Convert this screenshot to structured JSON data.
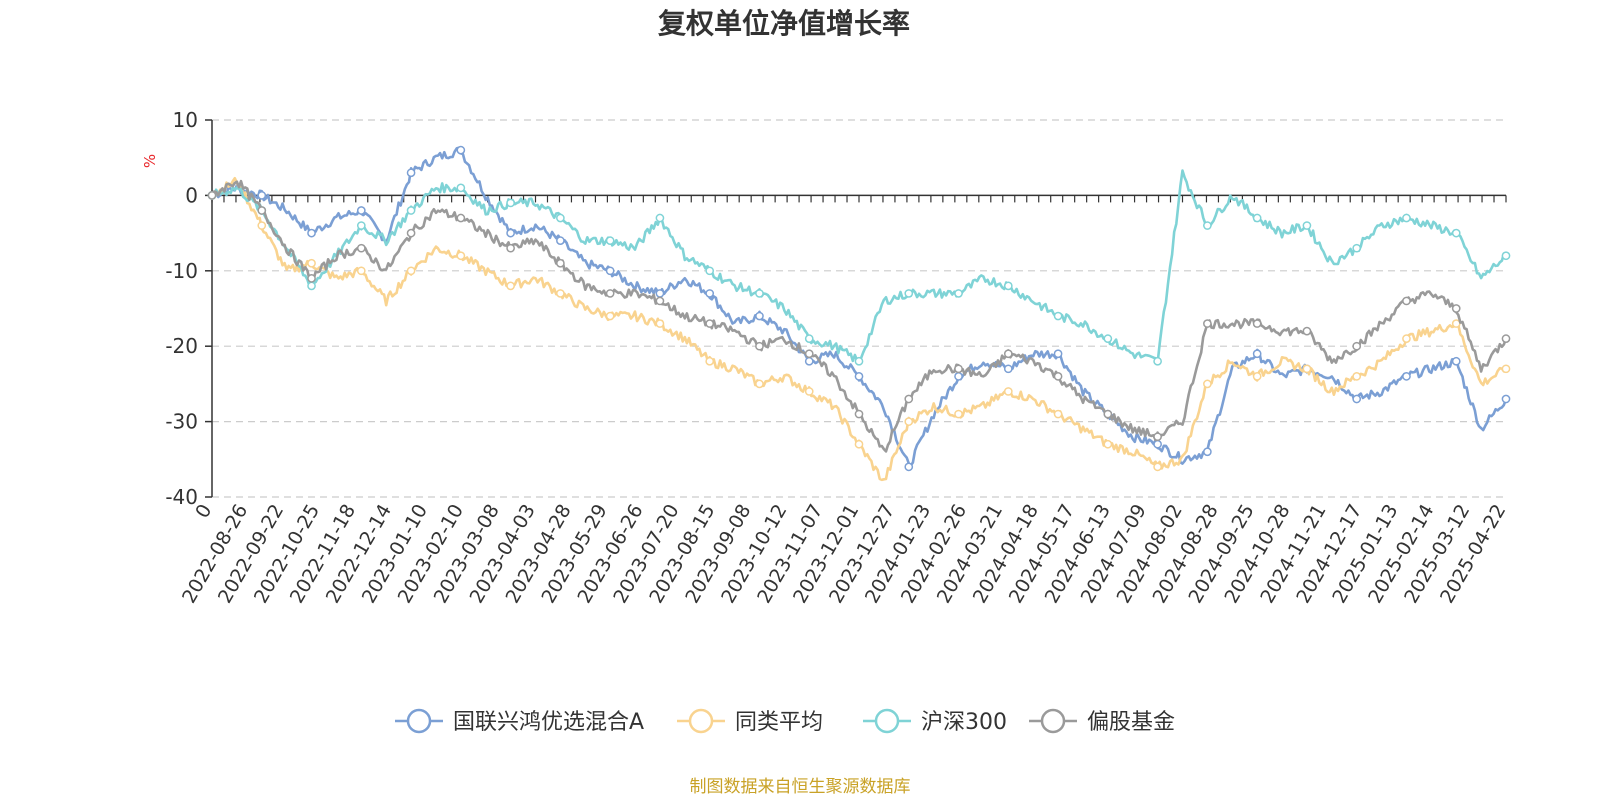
{
  "chart_data": {
    "type": "line",
    "title": "复权单位净值增长率",
    "y_unit": "%",
    "ylim": [
      -40,
      10
    ],
    "y_ticks": [
      10,
      0,
      -10,
      -20,
      -30,
      -40
    ],
    "x_tick_labels": [
      "0",
      "2022-08-26",
      "2022-09-22",
      "2022-10-25",
      "2022-11-18",
      "2022-12-14",
      "2023-01-10",
      "2023-02-10",
      "2023-03-08",
      "2023-04-03",
      "2023-04-28",
      "2023-05-29",
      "2023-06-26",
      "2023-07-20",
      "2023-08-15",
      "2023-09-08",
      "2023-10-12",
      "2023-11-07",
      "2023-12-01",
      "2023-12-27",
      "2024-01-23",
      "2024-02-26",
      "2024-03-21",
      "2024-04-18",
      "2024-05-17",
      "2024-06-13",
      "2024-07-09",
      "2024-08-02",
      "2024-08-28",
      "2024-09-25",
      "2024-10-28",
      "2024-11-21",
      "2024-12-17",
      "2025-01-13",
      "2025-02-14",
      "2025-03-12",
      "2025-04-22"
    ],
    "grid": "horizontal dashed",
    "legend_position": "bottom",
    "series": [
      {
        "name": "国联兴鸿优选混合A",
        "color": "#7b9fd4",
        "values": [
          0,
          1,
          0,
          -2,
          -5,
          -3,
          -2,
          -6,
          3,
          5,
          6,
          0,
          -5,
          -4,
          -6,
          -9,
          -10,
          -12,
          -13,
          -11,
          -13,
          -17,
          -16,
          -18,
          -22,
          -21,
          -24,
          -28,
          -36,
          -29,
          -24,
          -22,
          -23,
          -21,
          -21,
          -26,
          -29,
          -32,
          -33,
          -35,
          -34,
          -23,
          -21,
          -24,
          -23,
          -24,
          -27,
          -26,
          -24,
          -23,
          -22,
          -31,
          -27
        ]
      },
      {
        "name": "同类平均",
        "color": "#f9d38f",
        "values": [
          0,
          2,
          -4,
          -10,
          -9,
          -11,
          -10,
          -14,
          -10,
          -7,
          -8,
          -10,
          -12,
          -11,
          -13,
          -15,
          -16,
          -16,
          -17,
          -19,
          -22,
          -23,
          -25,
          -24,
          -26,
          -28,
          -33,
          -38,
          -30,
          -28,
          -29,
          -28,
          -26,
          -27,
          -29,
          -31,
          -33,
          -34,
          -36,
          -35,
          -25,
          -22,
          -24,
          -22,
          -23,
          -26,
          -24,
          -22,
          -19,
          -18,
          -17,
          -25,
          -23
        ]
      },
      {
        "name": "沪深300",
        "color": "#7fd3d6",
        "values": [
          0,
          1,
          -2,
          -7,
          -12,
          -8,
          -4,
          -6,
          -2,
          1,
          1,
          -2,
          -1,
          -1,
          -3,
          -6,
          -6,
          -7,
          -3,
          -8,
          -10,
          -12,
          -13,
          -15,
          -19,
          -20,
          -22,
          -14,
          -13,
          -13,
          -13,
          -11,
          -12,
          -14,
          -16,
          -17,
          -19,
          -21,
          -22,
          3,
          -4,
          0,
          -3,
          -5,
          -4,
          -9,
          -7,
          -4,
          -3,
          -4,
          -5,
          -11,
          -8
        ]
      },
      {
        "name": "偏股基金",
        "color": "#9a9a9a",
        "values": [
          0,
          2,
          -2,
          -7,
          -11,
          -8,
          -7,
          -10,
          -5,
          -2,
          -3,
          -5,
          -7,
          -6,
          -9,
          -12,
          -13,
          -13,
          -14,
          -16,
          -17,
          -18,
          -20,
          -19,
          -21,
          -24,
          -29,
          -34,
          -27,
          -23,
          -23,
          -24,
          -21,
          -22,
          -24,
          -27,
          -29,
          -31,
          -32,
          -30,
          -17,
          -17,
          -17,
          -18,
          -18,
          -22,
          -20,
          -17,
          -14,
          -13,
          -15,
          -23,
          -19
        ]
      }
    ],
    "source_note": "制图数据来自恒生聚源数据库"
  }
}
